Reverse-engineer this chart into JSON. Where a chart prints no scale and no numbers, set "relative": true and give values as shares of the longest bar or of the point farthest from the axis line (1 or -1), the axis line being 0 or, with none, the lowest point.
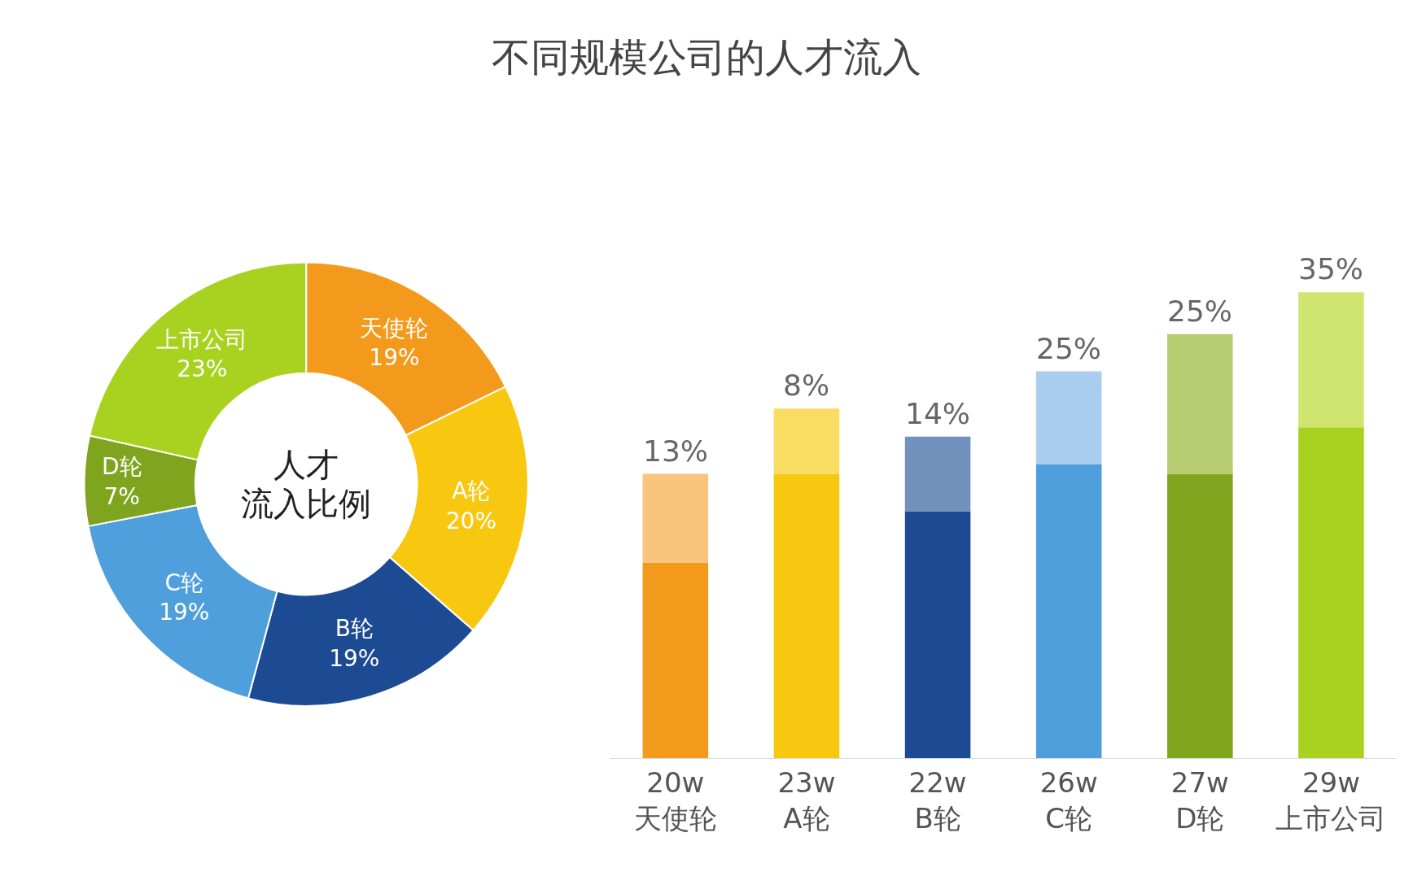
{
  "chart_data": [
    {
      "type": "donut",
      "title": "不同规模公司的人才流入",
      "annotations": [
        "人才",
        "流入比例"
      ],
      "categories": [
        "天使轮",
        "A轮",
        "B轮",
        "C轮",
        "D轮",
        "上市公司"
      ],
      "values": [
        19,
        20,
        19,
        19,
        7,
        23
      ],
      "value_labels": [
        "19%",
        "20%",
        "19%",
        "19%",
        "7%",
        "23%"
      ],
      "colors": [
        "#f39a1c",
        "#f8c70f",
        "#1c4a93",
        "#4f9fdc",
        "#7fa51e",
        "#a8d21f"
      ]
    },
    {
      "type": "bar",
      "stacked": true,
      "relative": true,
      "categories": [
        "20w\n天使轮",
        "23w\nA轮",
        "22w\nB轮",
        "26w\nC轮",
        "27w\nD轮",
        "29w\n上市公司"
      ],
      "series": [
        {
          "values": [
            0.42,
            0.61,
            0.53,
            0.63,
            0.61,
            0.71
          ],
          "colors": [
            "#f39a1c",
            "#f8c70f",
            "#1c4a93",
            "#4f9fdc",
            "#7fa51e",
            "#a8d21f"
          ]
        },
        {
          "values": [
            0.19,
            0.14,
            0.16,
            0.2,
            0.3,
            0.29
          ],
          "colors": [
            "#f9c47c",
            "#f9dc62",
            "#7391bd",
            "#a9cdee",
            "#b8cc72",
            "#cfe56f"
          ]
        }
      ],
      "annotations": [
        {
          "text": "13%",
          "x": "20w\n天使轮",
          "y": 0.61
        },
        {
          "text": "8%",
          "x": "23w\nA轮",
          "y": 0.75
        },
        {
          "text": "14%",
          "x": "22w\nB轮",
          "y": 0.69
        },
        {
          "text": "25%",
          "x": "26w\nC轮",
          "y": 0.83
        },
        {
          "text": "25%",
          "x": "27w\nD轮",
          "y": 0.91
        },
        {
          "text": "35%",
          "x": "29w\n上市公司",
          "y": 1.0
        }
      ]
    }
  ]
}
